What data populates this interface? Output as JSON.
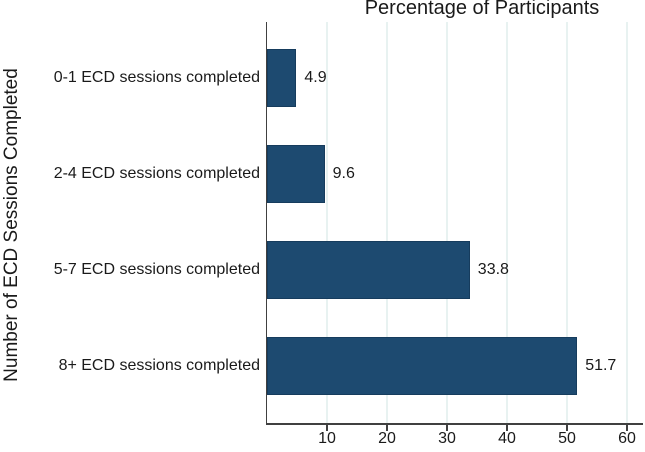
{
  "chart_data": {
    "type": "bar",
    "orientation": "horizontal",
    "title": "Percentage of Participants",
    "xlabel": "",
    "ylabel": "Number of ECD Sessions Completed",
    "categories": [
      "0-1 ECD sessions completed",
      "2-4 ECD sessions completed",
      "5-7 ECD sessions completed",
      "8+ ECD sessions completed"
    ],
    "values": [
      4.9,
      9.6,
      33.8,
      51.7
    ],
    "value_labels": [
      "4.9",
      "9.6",
      "33.8",
      "51.7"
    ],
    "xticks": [
      10,
      20,
      30,
      40,
      50,
      60
    ],
    "xtick_labels": [
      "10",
      "20",
      "30",
      "40",
      "50",
      "60"
    ],
    "xlim": [
      0,
      62.5
    ],
    "grid": true,
    "legend": false,
    "colors": {
      "bar_fill": "#1d4a70",
      "bar_border": "#163c5d",
      "gridline": "#e8f2f1",
      "axis": "#404040",
      "text": "#1a1a1a",
      "background": "#ffffff"
    }
  }
}
